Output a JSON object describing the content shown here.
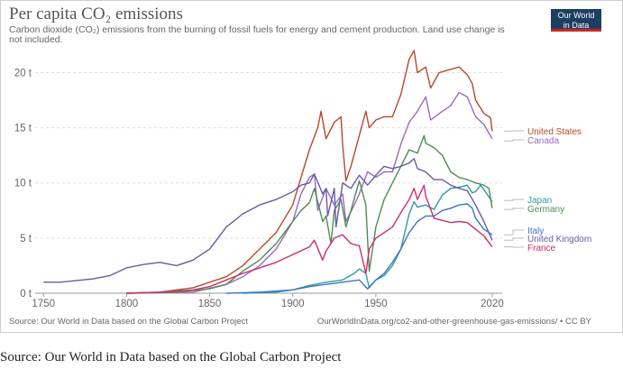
{
  "chart_data": {
    "type": "line",
    "title": "Per capita CO₂ emissions",
    "subtitle": "Carbon dioxide (CO₂) emissions from the burning of fossil fuels for energy and cement production. Land use change is not included.",
    "x_ticks": [
      "1750",
      "1800",
      "1850",
      "1900",
      "1950",
      "2020"
    ],
    "x_tick_values": [
      1750,
      1800,
      1850,
      1900,
      1950,
      2020
    ],
    "y_ticks": [
      "0 t",
      "5 t",
      "10 t",
      "15 t",
      "20 t"
    ],
    "y_tick_values": [
      0,
      5,
      10,
      15,
      20
    ],
    "xlim": [
      1745,
      2026
    ],
    "ylim": [
      0,
      22
    ],
    "grid": true,
    "series": [
      {
        "name": "United States",
        "color": "#b5492b",
        "label_y": 14.7,
        "points": [
          [
            1800,
            0
          ],
          [
            1820,
            0.1
          ],
          [
            1840,
            0.5
          ],
          [
            1860,
            1.5
          ],
          [
            1870,
            2.5
          ],
          [
            1880,
            4
          ],
          [
            1890,
            5.5
          ],
          [
            1900,
            8
          ],
          [
            1905,
            10.5
          ],
          [
            1910,
            13
          ],
          [
            1915,
            15
          ],
          [
            1917,
            16.5
          ],
          [
            1920,
            14
          ],
          [
            1925,
            15.5
          ],
          [
            1929,
            16
          ],
          [
            1930,
            13.5
          ],
          [
            1932,
            10.2
          ],
          [
            1935,
            11.5
          ],
          [
            1940,
            14.3
          ],
          [
            1944,
            16.5
          ],
          [
            1946,
            15
          ],
          [
            1950,
            15.7
          ],
          [
            1955,
            16
          ],
          [
            1960,
            16
          ],
          [
            1965,
            18
          ],
          [
            1970,
            21.2
          ],
          [
            1973,
            22
          ],
          [
            1975,
            20
          ],
          [
            1980,
            20.5
          ],
          [
            1983,
            18.6
          ],
          [
            1988,
            20
          ],
          [
            1995,
            20.3
          ],
          [
            2000,
            20.5
          ],
          [
            2005,
            19.8
          ],
          [
            2008,
            19
          ],
          [
            2010,
            17.5
          ],
          [
            2015,
            16.3
          ],
          [
            2019,
            15.9
          ],
          [
            2020,
            14.7
          ]
        ]
      },
      {
        "name": "Canada",
        "color": "#9b68c2",
        "label_y": 13.8,
        "points": [
          [
            1800,
            0
          ],
          [
            1840,
            0.1
          ],
          [
            1860,
            0.8
          ],
          [
            1870,
            1.5
          ],
          [
            1880,
            2.5
          ],
          [
            1890,
            4
          ],
          [
            1900,
            6.5
          ],
          [
            1905,
            9
          ],
          [
            1910,
            10.5
          ],
          [
            1913,
            10.8
          ],
          [
            1915,
            7.5
          ],
          [
            1920,
            9.5
          ],
          [
            1925,
            8
          ],
          [
            1930,
            9
          ],
          [
            1932,
            6.5
          ],
          [
            1937,
            8
          ],
          [
            1940,
            9
          ],
          [
            1945,
            11
          ],
          [
            1950,
            10.5
          ],
          [
            1955,
            11
          ],
          [
            1960,
            11
          ],
          [
            1965,
            13.5
          ],
          [
            1970,
            15.5
          ],
          [
            1975,
            16.5
          ],
          [
            1980,
            17.8
          ],
          [
            1983,
            15.7
          ],
          [
            1990,
            16.5
          ],
          [
            1995,
            17
          ],
          [
            2000,
            18.2
          ],
          [
            2005,
            17.8
          ],
          [
            2010,
            16
          ],
          [
            2015,
            15.3
          ],
          [
            2020,
            14
          ]
        ]
      },
      {
        "name": "Japan",
        "color": "#2f9b9b",
        "label_y": 8.4,
        "points": [
          [
            1870,
            0
          ],
          [
            1890,
            0.1
          ],
          [
            1900,
            0.3
          ],
          [
            1910,
            0.7
          ],
          [
            1920,
            1
          ],
          [
            1930,
            1.2
          ],
          [
            1937,
            1.8
          ],
          [
            1940,
            2.2
          ],
          [
            1944,
            1.8
          ],
          [
            1946,
            0.5
          ],
          [
            1950,
            1.2
          ],
          [
            1955,
            1.6
          ],
          [
            1960,
            2.5
          ],
          [
            1965,
            4
          ],
          [
            1970,
            7.2
          ],
          [
            1973,
            8.3
          ],
          [
            1975,
            7.8
          ],
          [
            1980,
            8
          ],
          [
            1985,
            7.6
          ],
          [
            1990,
            8.9
          ],
          [
            1995,
            9.5
          ],
          [
            2000,
            9.6
          ],
          [
            2005,
            9.8
          ],
          [
            2008,
            9.1
          ],
          [
            2010,
            9.2
          ],
          [
            2013,
            9.8
          ],
          [
            2015,
            9.4
          ],
          [
            2020,
            8.3
          ]
        ]
      },
      {
        "name": "Germany",
        "color": "#4c8e52",
        "label_y": 7.6,
        "points": [
          [
            1800,
            0
          ],
          [
            1830,
            0.1
          ],
          [
            1850,
            0.4
          ],
          [
            1860,
            0.8
          ],
          [
            1870,
            2
          ],
          [
            1880,
            3
          ],
          [
            1890,
            4.5
          ],
          [
            1900,
            6.5
          ],
          [
            1905,
            7.5
          ],
          [
            1910,
            8.2
          ],
          [
            1913,
            9.5
          ],
          [
            1918,
            6.5
          ],
          [
            1920,
            7
          ],
          [
            1923,
            4.5
          ],
          [
            1925,
            7.5
          ],
          [
            1929,
            8.5
          ],
          [
            1932,
            6
          ],
          [
            1935,
            7.5
          ],
          [
            1940,
            10.2
          ],
          [
            1944,
            8
          ],
          [
            1946,
            2
          ],
          [
            1947,
            3
          ],
          [
            1950,
            6
          ],
          [
            1955,
            8.5
          ],
          [
            1960,
            10
          ],
          [
            1965,
            11.5
          ],
          [
            1970,
            13
          ],
          [
            1975,
            12.7
          ],
          [
            1979,
            14.3
          ],
          [
            1980,
            13.6
          ],
          [
            1985,
            13.2
          ],
          [
            1990,
            12.5
          ],
          [
            1995,
            11
          ],
          [
            2000,
            10.5
          ],
          [
            2005,
            10.3
          ],
          [
            2010,
            10
          ],
          [
            2015,
            9.8
          ],
          [
            2018,
            9.5
          ],
          [
            2020,
            7.7
          ]
        ]
      },
      {
        "name": "Italy",
        "color": "#3a74c7",
        "label_y": 5.3,
        "points": [
          [
            1860,
            0
          ],
          [
            1880,
            0.1
          ],
          [
            1900,
            0.3
          ],
          [
            1910,
            0.6
          ],
          [
            1920,
            0.8
          ],
          [
            1930,
            1
          ],
          [
            1940,
            1.2
          ],
          [
            1945,
            0.4
          ],
          [
            1950,
            1.2
          ],
          [
            1955,
            1.8
          ],
          [
            1960,
            2.8
          ],
          [
            1965,
            4
          ],
          [
            1970,
            5.5
          ],
          [
            1975,
            6.5
          ],
          [
            1980,
            7
          ],
          [
            1985,
            7
          ],
          [
            1990,
            7.5
          ],
          [
            1995,
            7.7
          ],
          [
            2000,
            8
          ],
          [
            2005,
            8.1
          ],
          [
            2008,
            7.7
          ],
          [
            2010,
            6.8
          ],
          [
            2015,
            5.8
          ],
          [
            2020,
            5.3
          ]
        ]
      },
      {
        "name": "United Kingdom",
        "color": "#6a5aa5",
        "label_y": 4.8,
        "points": [
          [
            1750,
            1
          ],
          [
            1760,
            1
          ],
          [
            1780,
            1.3
          ],
          [
            1790,
            1.6
          ],
          [
            1800,
            2.3
          ],
          [
            1810,
            2.6
          ],
          [
            1820,
            2.8
          ],
          [
            1830,
            2.5
          ],
          [
            1840,
            3
          ],
          [
            1850,
            4
          ],
          [
            1860,
            6
          ],
          [
            1870,
            7.2
          ],
          [
            1880,
            8
          ],
          [
            1890,
            8.5
          ],
          [
            1900,
            9.2
          ],
          [
            1905,
            9.8
          ],
          [
            1910,
            10
          ],
          [
            1913,
            10.8
          ],
          [
            1918,
            9
          ],
          [
            1920,
            9.5
          ],
          [
            1921,
            7
          ],
          [
            1925,
            9.5
          ],
          [
            1926,
            6
          ],
          [
            1930,
            10
          ],
          [
            1935,
            9.5
          ],
          [
            1940,
            10.7
          ],
          [
            1945,
            9.8
          ],
          [
            1950,
            10.7
          ],
          [
            1955,
            11.5
          ],
          [
            1960,
            11.3
          ],
          [
            1965,
            11.5
          ],
          [
            1970,
            11.8
          ],
          [
            1973,
            12.2
          ],
          [
            1975,
            11.3
          ],
          [
            1980,
            11
          ],
          [
            1985,
            10.3
          ],
          [
            1990,
            10.3
          ],
          [
            1995,
            9.8
          ],
          [
            2000,
            9.5
          ],
          [
            2005,
            9.3
          ],
          [
            2010,
            8
          ],
          [
            2015,
            6.5
          ],
          [
            2020,
            4.8
          ]
        ]
      },
      {
        "name": "France",
        "color": "#ce2d6a",
        "label_y": 4.2,
        "points": [
          [
            1800,
            0
          ],
          [
            1820,
            0.1
          ],
          [
            1840,
            0.3
          ],
          [
            1850,
            0.6
          ],
          [
            1860,
            1.2
          ],
          [
            1870,
            1.8
          ],
          [
            1880,
            2.3
          ],
          [
            1890,
            2.8
          ],
          [
            1900,
            3.5
          ],
          [
            1910,
            4.2
          ],
          [
            1913,
            4.8
          ],
          [
            1918,
            3
          ],
          [
            1920,
            3.8
          ],
          [
            1925,
            5
          ],
          [
            1930,
            5.3
          ],
          [
            1935,
            4.5
          ],
          [
            1940,
            4.3
          ],
          [
            1944,
            1.8
          ],
          [
            1946,
            4
          ],
          [
            1950,
            5
          ],
          [
            1955,
            5.5
          ],
          [
            1960,
            6
          ],
          [
            1965,
            7.3
          ],
          [
            1970,
            8.5
          ],
          [
            1973,
            9.5
          ],
          [
            1975,
            8.5
          ],
          [
            1979,
            9.8
          ],
          [
            1980,
            8.8
          ],
          [
            1985,
            6.8
          ],
          [
            1990,
            6.6
          ],
          [
            1995,
            6.4
          ],
          [
            2000,
            6.5
          ],
          [
            2005,
            6.4
          ],
          [
            2010,
            5.8
          ],
          [
            2015,
            5.2
          ],
          [
            2020,
            4.2
          ]
        ]
      }
    ],
    "source": "Source: Our World in Data based on the Global Carbon Project",
    "url": "OurWorldInData.org/co2-and-other-greenhouse-gas-emissions/ • CC BY"
  },
  "logo": {
    "line1": "Our World",
    "line2": "in Data"
  },
  "caption": "Source: Our World in Data based on the Global Carbon Project"
}
